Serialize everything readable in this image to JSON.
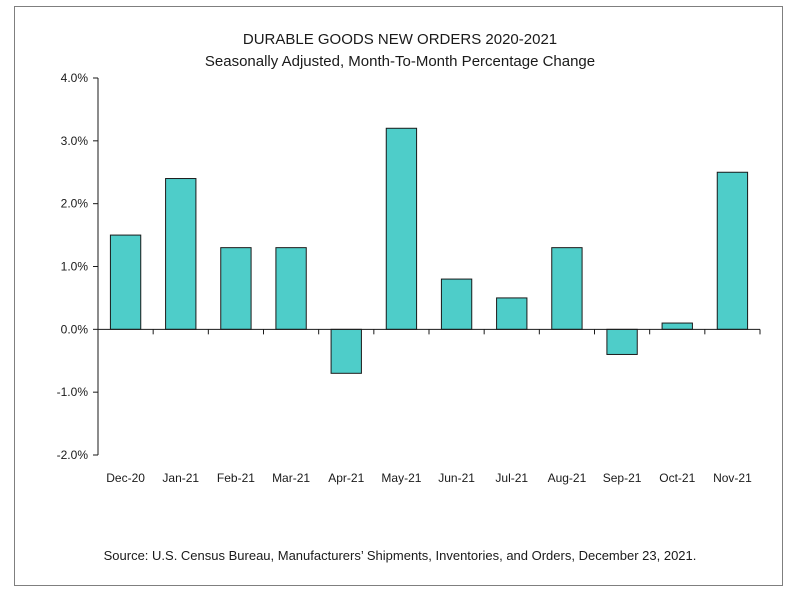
{
  "chart_data": {
    "type": "bar",
    "title": "DURABLE GOODS NEW ORDERS 2020-2021",
    "subtitle": "Seasonally Adjusted,  Month-To-Month Percentage Change",
    "categories": [
      "Dec-20",
      "Jan-21",
      "Feb-21",
      "Mar-21",
      "Apr-21",
      "May-21",
      "Jun-21",
      "Jul-21",
      "Aug-21",
      "Sep-21",
      "Oct-21",
      "Nov-21"
    ],
    "values": [
      1.5,
      2.4,
      1.3,
      1.3,
      -0.7,
      3.2,
      0.8,
      0.5,
      1.3,
      -0.4,
      0.1,
      2.5
    ],
    "ylim": [
      -2.0,
      4.0
    ],
    "yticks": [
      4.0,
      3.0,
      2.0,
      1.0,
      0.0,
      -1.0,
      -2.0
    ],
    "ytick_labels": [
      "4.0%",
      "3.0%",
      "2.0%",
      "1.0%",
      "0.0%",
      "-1.0%",
      "-2.0%"
    ],
    "xlabel": "",
    "ylabel": "",
    "grid": false,
    "legend": "none",
    "bar_color": "#4ecdc9",
    "bar_edge_color": "#1a1a1a"
  },
  "source_note": "Source: U.S. Census Bureau, Manufacturers’ Shipments, Inventories, and Orders, December 23, 2021."
}
